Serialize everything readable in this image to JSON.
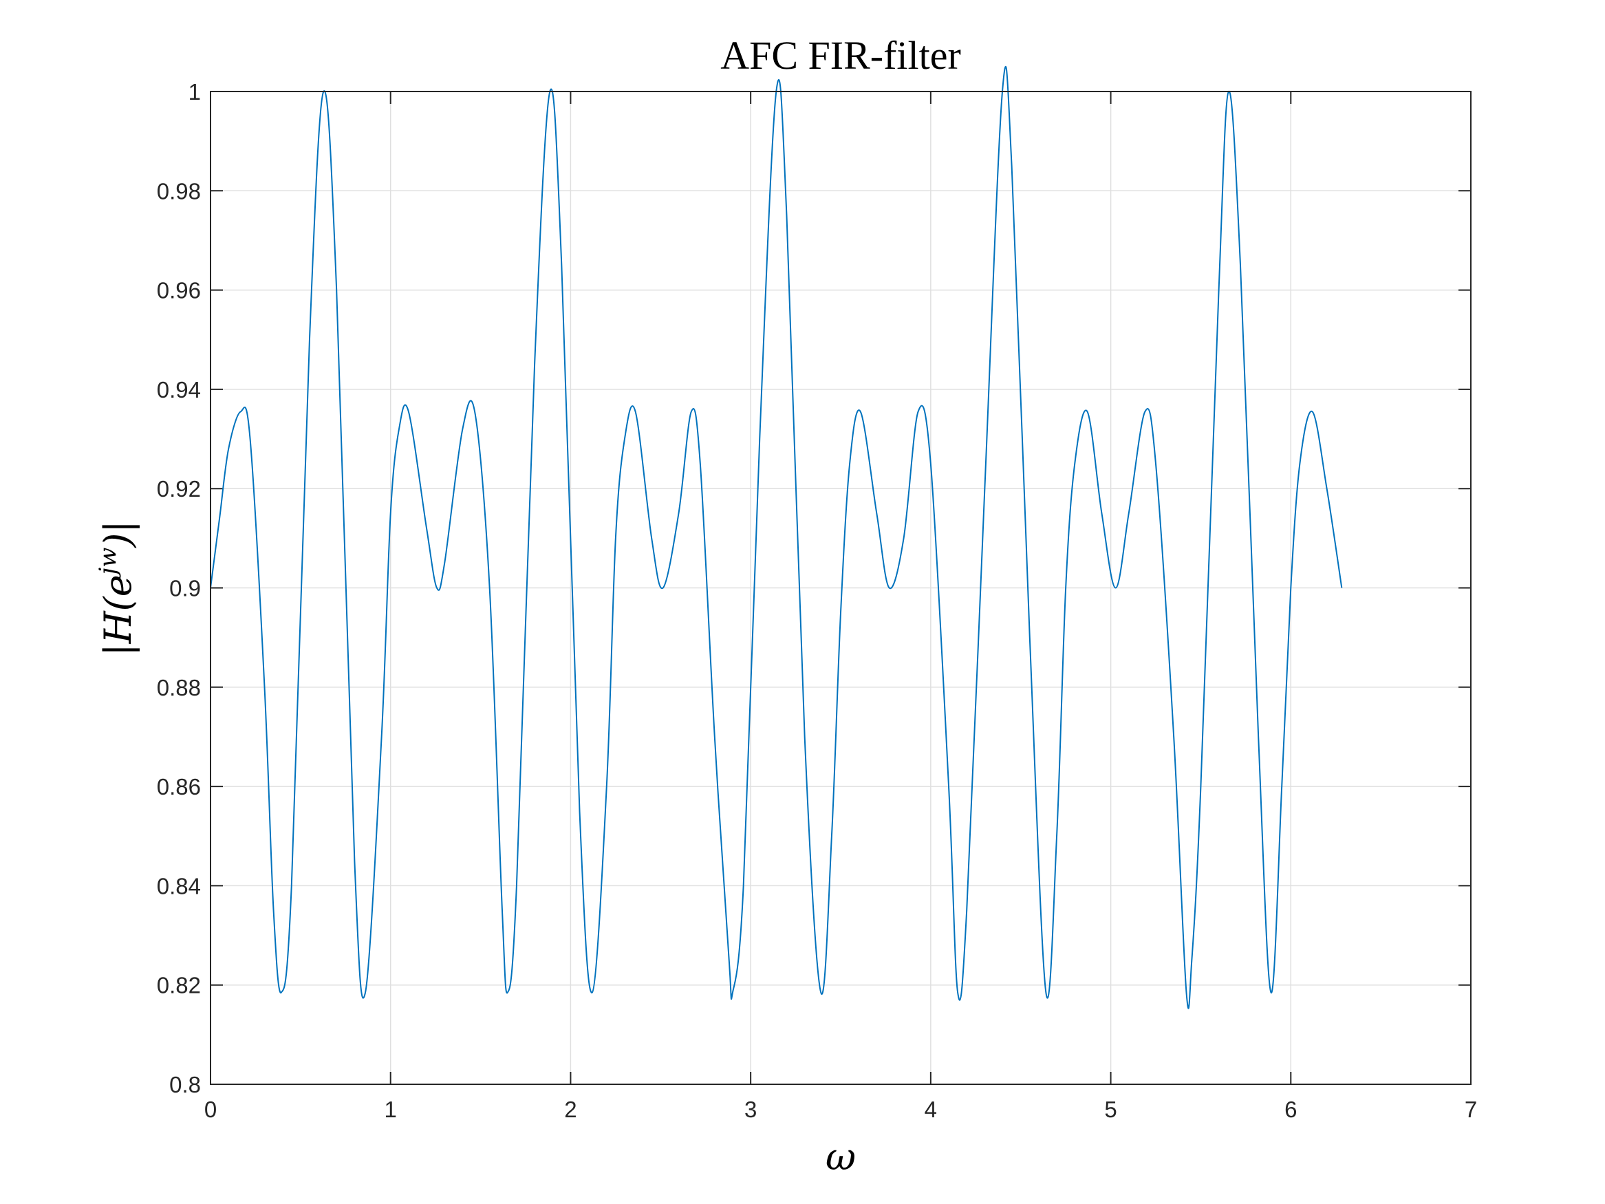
{
  "chart_data": {
    "type": "line",
    "title": "AFC FIR-filter",
    "xlabel": "ω",
    "ylabel": {
      "prefix": "|H(e",
      "superscript": "jw",
      "suffix": ")|"
    },
    "xlim": [
      0,
      7
    ],
    "ylim": [
      0.8,
      1.0
    ],
    "xticks": [
      "0",
      "1",
      "2",
      "3",
      "4",
      "5",
      "6",
      "7"
    ],
    "yticks": [
      "0.8",
      "0.82",
      "0.84",
      "0.86",
      "0.88",
      "0.9",
      "0.92",
      "0.94",
      "0.96",
      "0.98",
      "1"
    ],
    "grid": true,
    "series": [
      {
        "color": "#0072BD",
        "x": [
          0,
          0.05,
          0.1,
          0.167,
          0.22,
          0.3,
          0.35,
          0.393,
          0.45,
          0.55,
          0.628,
          0.7,
          0.8,
          0.86,
          0.95,
          1.0,
          1.047,
          1.1,
          1.2,
          1.257,
          1.3,
          1.4,
          1.47,
          1.55,
          1.62,
          1.65,
          1.7,
          1.8,
          1.885,
          1.95,
          2.05,
          2.12,
          2.2,
          2.25,
          2.3,
          2.36,
          2.45,
          2.513,
          2.6,
          2.67,
          2.72,
          2.8,
          2.88,
          2.9,
          2.96,
          3.05,
          3.142,
          3.2,
          3.3,
          3.39,
          3.45,
          3.5,
          3.55,
          3.61,
          3.7,
          3.77,
          3.85,
          3.93,
          4.0,
          4.1,
          4.15,
          4.2,
          4.3,
          4.398,
          4.45,
          4.55,
          4.64,
          4.7,
          4.75,
          4.8,
          4.87,
          4.95,
          5.027,
          5.1,
          5.19,
          5.25,
          5.35,
          5.42,
          5.45,
          5.5,
          5.6,
          5.655,
          5.72,
          5.82,
          5.89,
          5.95,
          6.0,
          6.05,
          6.12,
          6.2,
          6.283
        ],
        "y": [
          0.9,
          0.914,
          0.928,
          0.9355,
          0.93,
          0.88,
          0.835,
          0.8185,
          0.84,
          0.95,
          1.0,
          0.96,
          0.845,
          0.8185,
          0.87,
          0.915,
          0.932,
          0.9355,
          0.912,
          0.9,
          0.905,
          0.932,
          0.935,
          0.9,
          0.835,
          0.8185,
          0.84,
          0.945,
          1.0,
          0.965,
          0.855,
          0.8185,
          0.86,
          0.91,
          0.93,
          0.9355,
          0.91,
          0.9,
          0.915,
          0.9355,
          0.925,
          0.87,
          0.825,
          0.8185,
          0.84,
          0.93,
          1.0,
          0.975,
          0.87,
          0.8185,
          0.85,
          0.895,
          0.925,
          0.9355,
          0.915,
          0.9,
          0.91,
          0.9355,
          0.925,
          0.86,
          0.8185,
          0.835,
          0.92,
          1.0,
          0.985,
          0.89,
          0.8185,
          0.85,
          0.9,
          0.925,
          0.9355,
          0.915,
          0.9,
          0.915,
          0.9355,
          0.925,
          0.87,
          0.8185,
          0.825,
          0.86,
          0.96,
          1.0,
          0.965,
          0.87,
          0.8185,
          0.86,
          0.9,
          0.925,
          0.9355,
          0.92,
          0.9
        ]
      }
    ]
  }
}
